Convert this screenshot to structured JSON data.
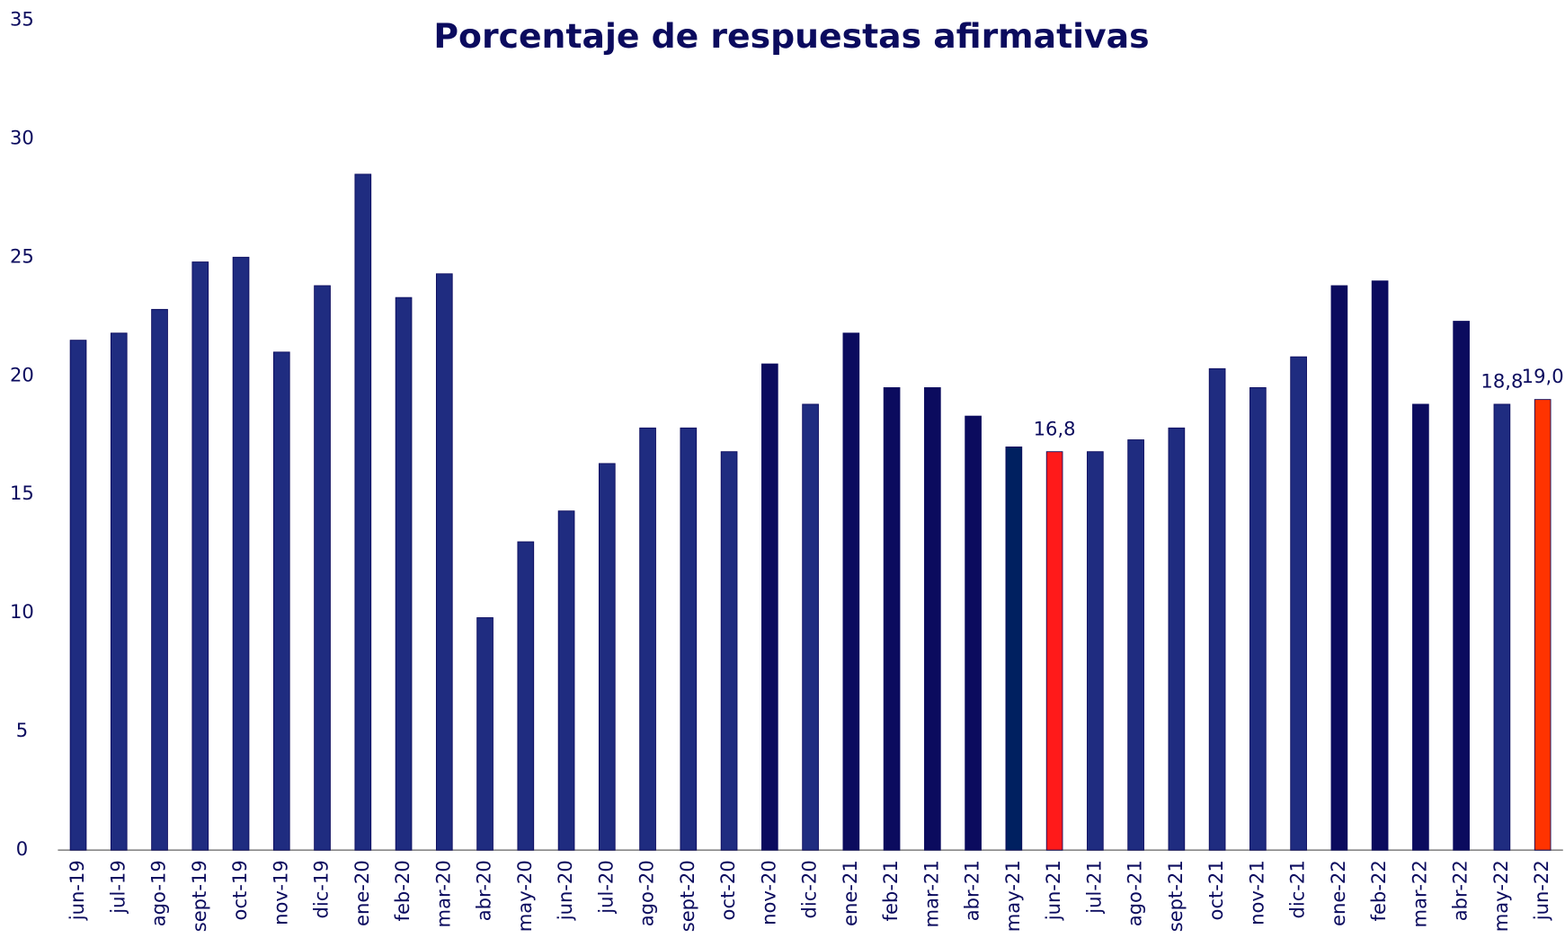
{
  "chart_data": {
    "type": "bar",
    "title": "Porcentaje de respuestas afirmativas",
    "categories": [
      "jun-19",
      "jul-19",
      "ago-19",
      "sept-19",
      "oct-19",
      "nov-19",
      "dic-19",
      "ene-20",
      "feb-20",
      "mar-20",
      "abr-20",
      "may-20",
      "jun-20",
      "jul-20",
      "ago-20",
      "sept-20",
      "oct-20",
      "nov-20",
      "dic-20",
      "ene-21",
      "feb-21",
      "mar-21",
      "abr-21",
      "may-21",
      "jun-21",
      "jul-21",
      "ago-21",
      "sept-21",
      "oct-21",
      "nov-21",
      "dic-21",
      "ene-22",
      "feb-22",
      "mar-22",
      "abr-22",
      "may-22",
      "jun-22"
    ],
    "values": [
      21.5,
      21.8,
      22.8,
      24.8,
      25.0,
      21.0,
      23.8,
      28.5,
      23.3,
      24.3,
      9.8,
      13.0,
      14.3,
      16.3,
      17.8,
      17.8,
      16.8,
      20.5,
      18.8,
      21.8,
      19.5,
      19.5,
      18.3,
      17.0,
      16.8,
      16.8,
      17.3,
      17.8,
      20.3,
      19.5,
      20.8,
      23.8,
      24.0,
      18.8,
      22.3,
      18.8,
      19.0
    ],
    "value_labels": [
      null,
      null,
      null,
      null,
      null,
      null,
      null,
      null,
      null,
      null,
      null,
      null,
      null,
      null,
      null,
      null,
      null,
      null,
      null,
      null,
      null,
      null,
      null,
      null,
      "16,8",
      null,
      null,
      null,
      null,
      null,
      null,
      null,
      null,
      null,
      null,
      "18,8",
      "19,0"
    ],
    "colors": [
      "#1f2c80",
      "#1f2c80",
      "#1f2c80",
      "#1f2c80",
      "#1f2c80",
      "#1f2c80",
      "#1f2c80",
      "#1f2c80",
      "#1f2c80",
      "#1f2c80",
      "#1f2c80",
      "#1f2c80",
      "#1f2c80",
      "#1f2c80",
      "#1f2c80",
      "#1f2c80",
      "#1f2c80",
      "#0b0b5e",
      "#1f2c80",
      "#0b0b5e",
      "#0b0b5e",
      "#0b0b5e",
      "#0b0b5e",
      "#002060",
      "#ff1a1a",
      "#1f2c80",
      "#1f2c80",
      "#1f2c80",
      "#1f2c80",
      "#1f2c80",
      "#1f2c80",
      "#0b0b5e",
      "#0b0b5e",
      "#0b0b5e",
      "#0b0b5e",
      "#1f2c80",
      "#ff3300"
    ],
    "ylim": [
      0,
      35
    ],
    "yticks": [
      0,
      5,
      10,
      15,
      20,
      25,
      30,
      35
    ],
    "grid": false
  }
}
